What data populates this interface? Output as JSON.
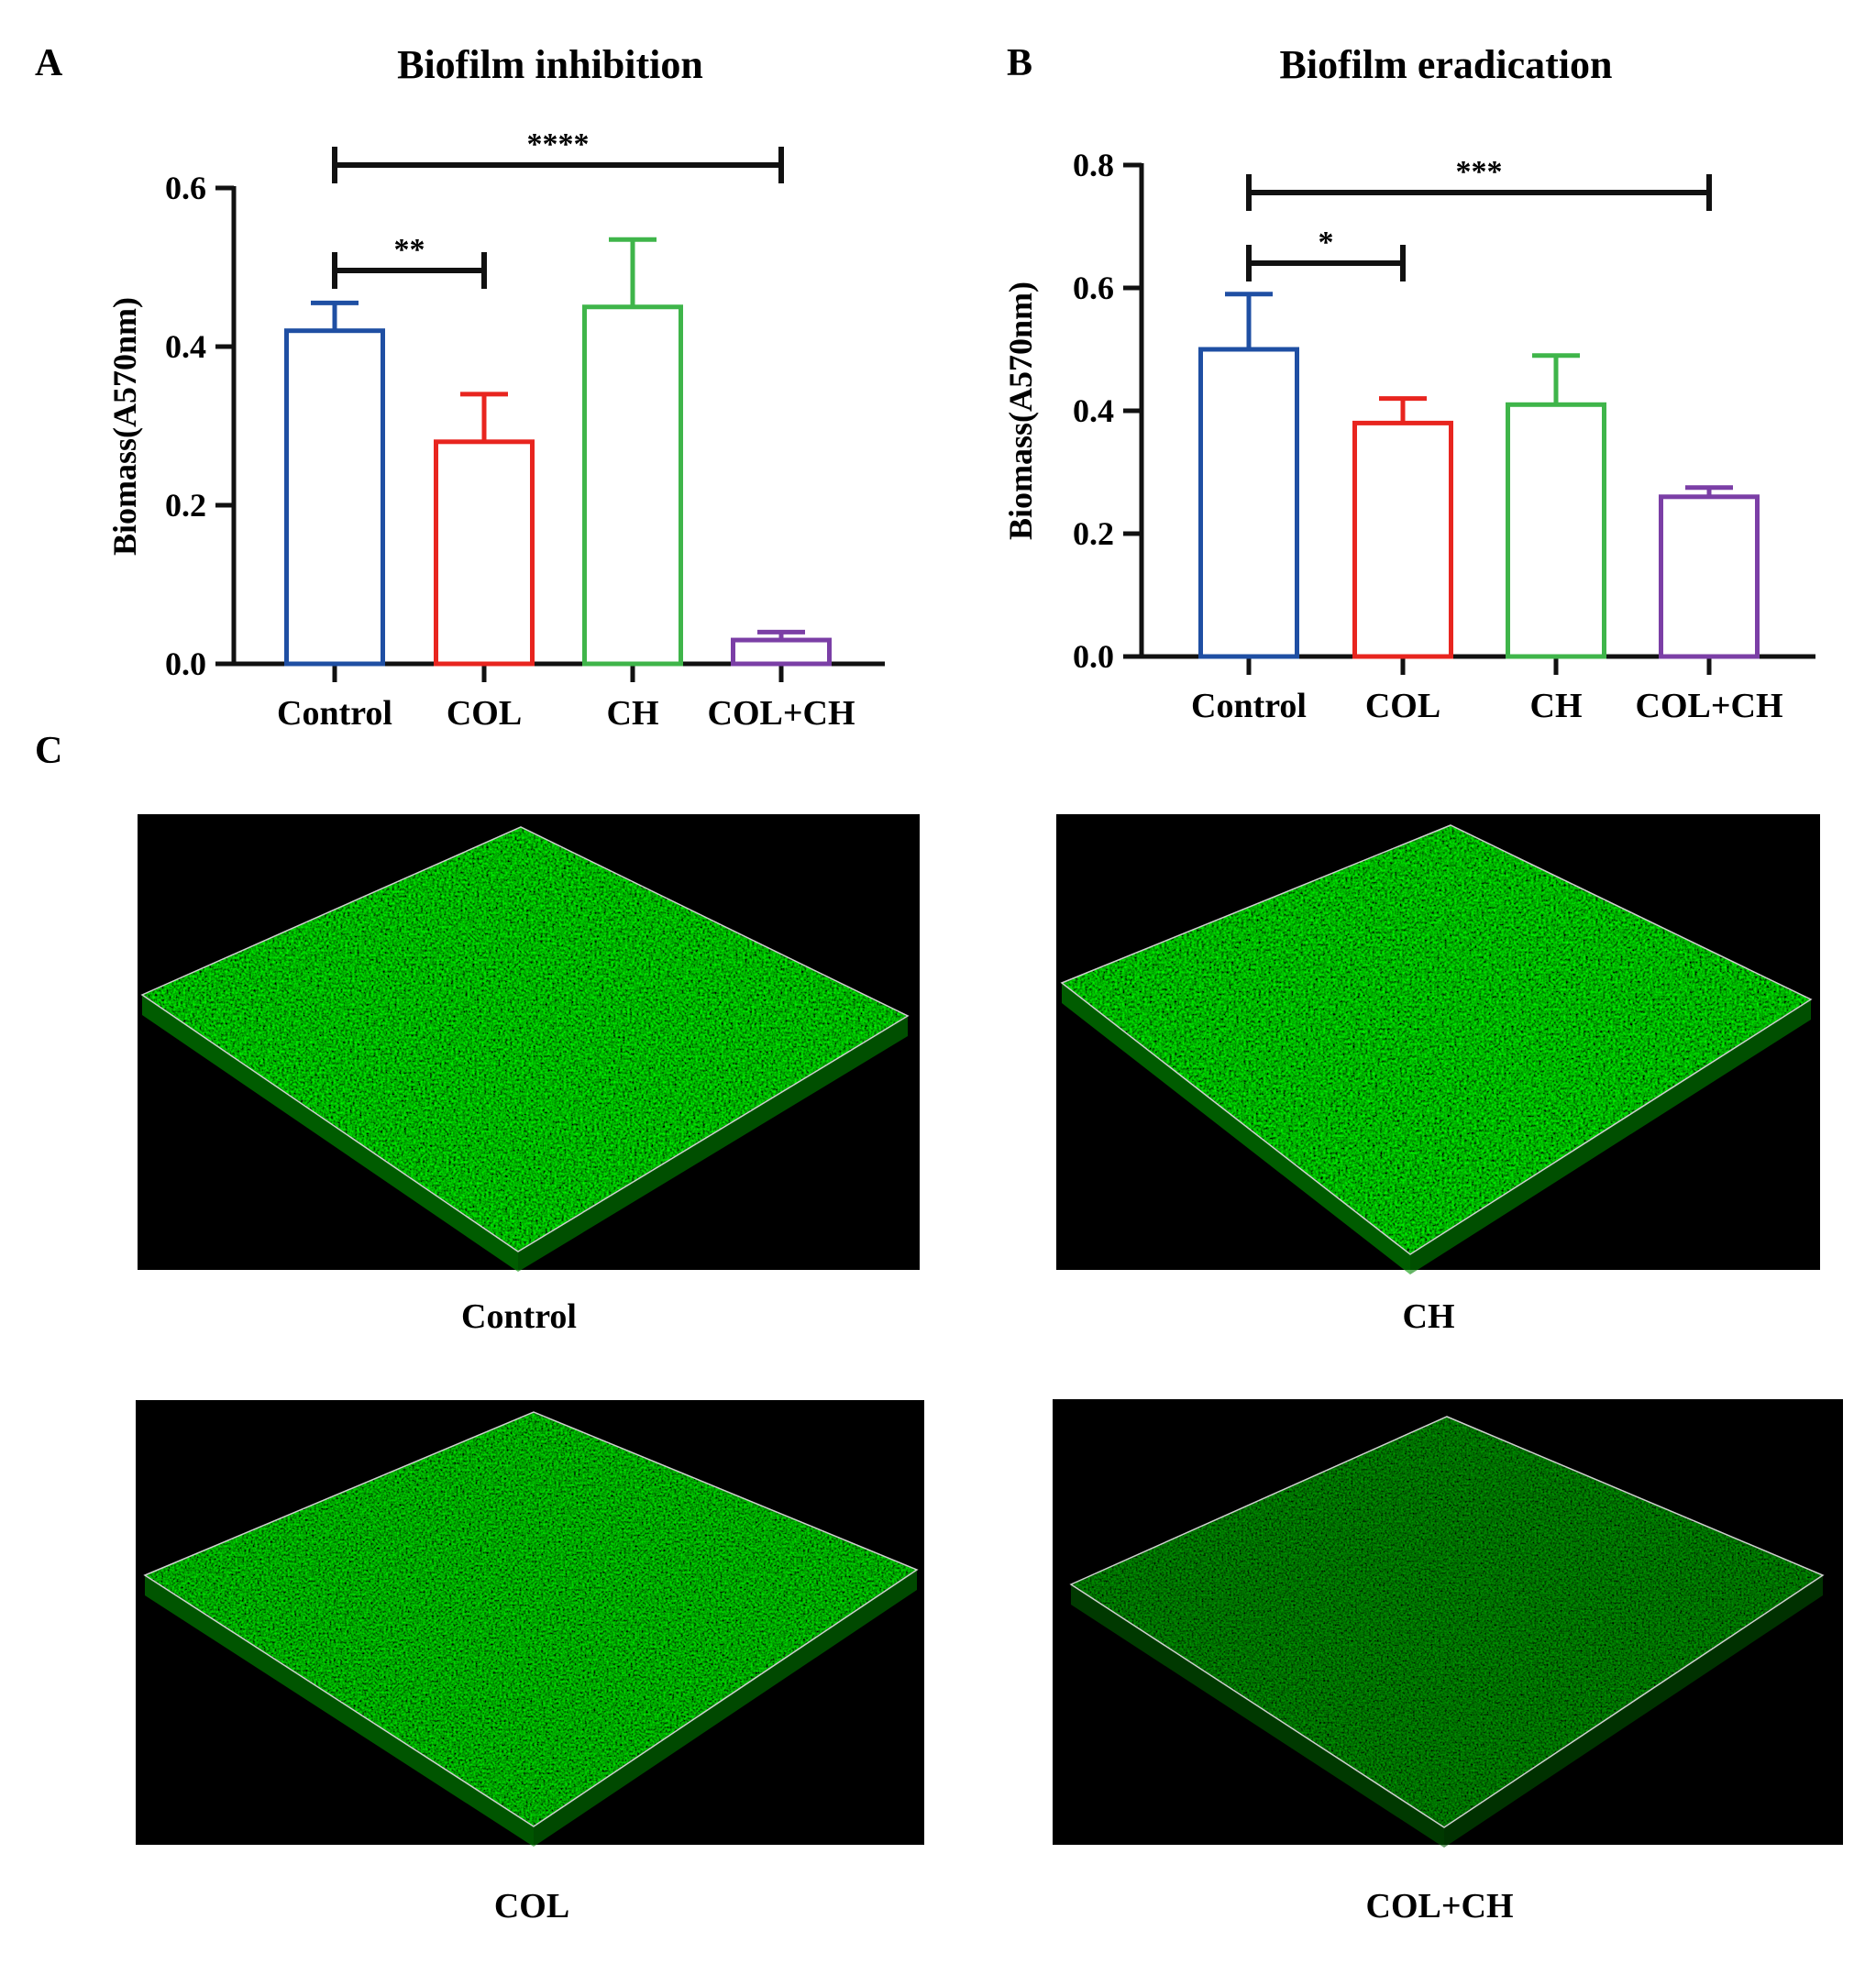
{
  "panel_c_label": "C",
  "chart_data": [
    {
      "type": "bar",
      "panel": "A",
      "title": "Biofilm inhibition",
      "ylabel": "Biomass(A570nm)",
      "xlabel": "",
      "ylim": [
        0,
        0.6
      ],
      "yticks": [
        0.0,
        0.2,
        0.4,
        0.6
      ],
      "ytick_labels": [
        "0.0",
        "0.2",
        "0.4",
        "0.6"
      ],
      "categories": [
        "Control",
        "COL",
        "CH",
        "COL+CH"
      ],
      "values": [
        0.42,
        0.28,
        0.45,
        0.03
      ],
      "errors": [
        0.035,
        0.06,
        0.085,
        0.01
      ],
      "colors": [
        "#1f4fa3",
        "#e8251f",
        "#3fb54a",
        "#7b3fa6"
      ],
      "significance": [
        {
          "from": 0,
          "to": 3,
          "label": "****"
        },
        {
          "from": 0,
          "to": 1,
          "label": "**"
        }
      ],
      "grid": false
    },
    {
      "type": "bar",
      "panel": "B",
      "title": "Biofilm eradication",
      "ylabel": "Biomass(A570nm)",
      "xlabel": "",
      "ylim": [
        0,
        0.8
      ],
      "yticks": [
        0.0,
        0.2,
        0.4,
        0.6,
        0.8
      ],
      "ytick_labels": [
        "0.0",
        "0.2",
        "0.4",
        "0.6",
        "0.8"
      ],
      "categories": [
        "Control",
        "COL",
        "CH",
        "COL+CH"
      ],
      "values": [
        0.5,
        0.38,
        0.41,
        0.26
      ],
      "errors": [
        0.09,
        0.04,
        0.08,
        0.015
      ],
      "colors": [
        "#1f4fa3",
        "#e8251f",
        "#3fb54a",
        "#7b3fa6"
      ],
      "significance": [
        {
          "from": 0,
          "to": 3,
          "label": "***"
        },
        {
          "from": 0,
          "to": 1,
          "label": "*"
        }
      ],
      "grid": false
    }
  ],
  "images": [
    {
      "caption": "Control",
      "intensity": 1.0,
      "grain": 0.45
    },
    {
      "caption": "CH",
      "intensity": 1.0,
      "grain": 0.4
    },
    {
      "caption": "COL",
      "intensity": 0.85,
      "grain": 0.55
    },
    {
      "caption": "COL+CH",
      "intensity": 0.35,
      "grain": 0.7
    }
  ]
}
